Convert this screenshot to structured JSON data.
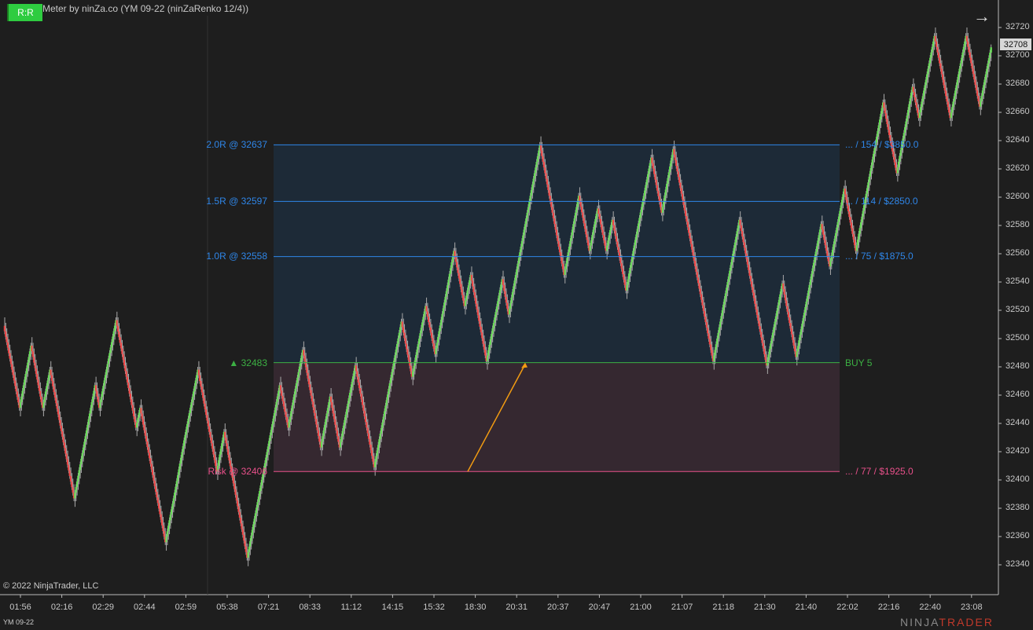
{
  "header": {
    "title": "rd Meter by ninZa.co (YM 09-22 (ninZaRenko 12/4))",
    "rr_button": "R:R",
    "nav_icon": "arrow-right-icon"
  },
  "footer": {
    "copyright": "© 2022 NinjaTrader, LLC",
    "instrument": "YM 09-22",
    "logo_a": "NINJA",
    "logo_b": "TRADER"
  },
  "levels": {
    "target_2r": {
      "left": "2.0R @ 32637",
      "right": "...  /  154  /  $3850.0",
      "price": 32637
    },
    "target_15r": {
      "left": "1.5R @ 32597",
      "right": "...  /  114  /  $2850.0",
      "price": 32597
    },
    "target_1r": {
      "left": "1.0R @ 32558",
      "right": "...  /  75  /  $1875.0",
      "price": 32558
    },
    "entry": {
      "left": "▲ 32483",
      "right": "BUY 5",
      "price": 32483
    },
    "risk": {
      "left": "Risk @ 32406",
      "right": "...  /  77  /  $1925.0",
      "price": 32406
    }
  },
  "colors": {
    "target": "#2f86e8",
    "entry": "#3cb043",
    "risk": "#e8508a",
    "up": "#66dd55",
    "down": "#ee4444",
    "wick": "#aaaaaa",
    "reward_zone": "#1d2a37",
    "risk_zone": "#352830",
    "arrow": "#f39c12"
  },
  "chart_data": {
    "type": "candlestick",
    "brick_size": 4,
    "current_price": "32708",
    "ylim": [
      32334,
      32737
    ],
    "price_ticks": [
      "32340",
      "32360",
      "32380",
      "32400",
      "32420",
      "32440",
      "32460",
      "32480",
      "32500",
      "32520",
      "32540",
      "32560",
      "32580",
      "32600",
      "32620",
      "32640",
      "32660",
      "32680",
      "32700",
      "32720"
    ],
    "time_ticks": [
      "01:56",
      "02:16",
      "02:29",
      "02:44",
      "02:59",
      "05:38",
      "07:21",
      "08:33",
      "11:12",
      "14:15",
      "15:32",
      "18:30",
      "20:31",
      "20:37",
      "20:47",
      "21:00",
      "21:07",
      "21:18",
      "21:30",
      "21:40",
      "22:02",
      "22:16",
      "22:40",
      "23:08"
    ],
    "pivots": [
      32509,
      32451,
      32495,
      32451,
      32478,
      32387,
      32467,
      32451,
      32513,
      32437,
      32451,
      32356,
      32387,
      32428,
      32478,
      32406,
      32434,
      32345,
      32467,
      32437,
      32492,
      32423,
      32459,
      32423,
      32481,
      32409,
      32512,
      32473,
      32523,
      32489,
      32562,
      32523,
      32545,
      32484,
      32542,
      32517,
      32637,
      32545,
      32601,
      32562,
      32592,
      32562,
      32584,
      32534,
      32562,
      32628,
      32589,
      32634,
      32484,
      32584,
      32481,
      32539,
      32487,
      32581,
      32551,
      32606,
      32562,
      32667,
      32617,
      32678,
      32656,
      32714,
      32656,
      32714,
      32664,
      32706
    ]
  }
}
